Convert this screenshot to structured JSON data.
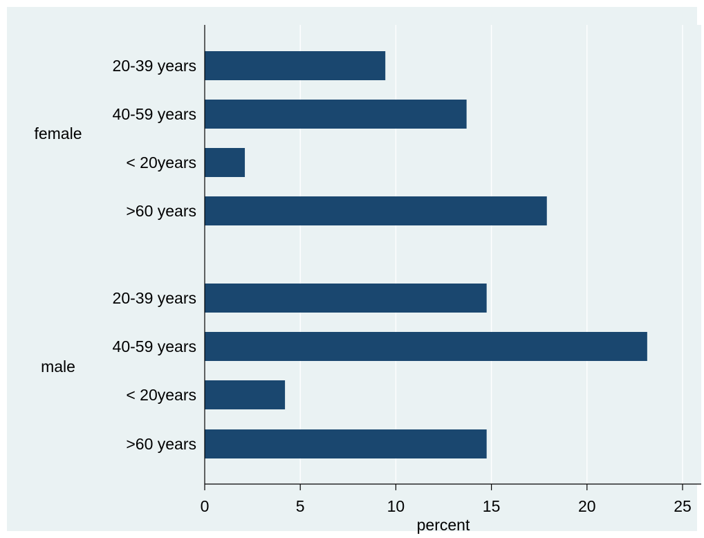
{
  "chart_data": {
    "type": "bar",
    "orientation": "horizontal",
    "xlabel": "percent",
    "xlim": [
      0,
      25
    ],
    "xticks": [
      0,
      5,
      10,
      15,
      20,
      25
    ],
    "grid": true,
    "groups": [
      {
        "name": "female",
        "categories": [
          "20-39 years",
          "40-59 years",
          "< 20years",
          ">60 years"
        ],
        "values": [
          9.45,
          13.7,
          2.1,
          17.9
        ]
      },
      {
        "name": "male",
        "categories": [
          "20-39 years",
          "40-59 years",
          "< 20years",
          ">60 years"
        ],
        "values": [
          14.75,
          23.15,
          4.2,
          14.75
        ]
      }
    ],
    "colors": {
      "bar": "#1a476f",
      "background": "#eaf2f3",
      "grid": "#ffffff",
      "axis": "#000000"
    }
  }
}
